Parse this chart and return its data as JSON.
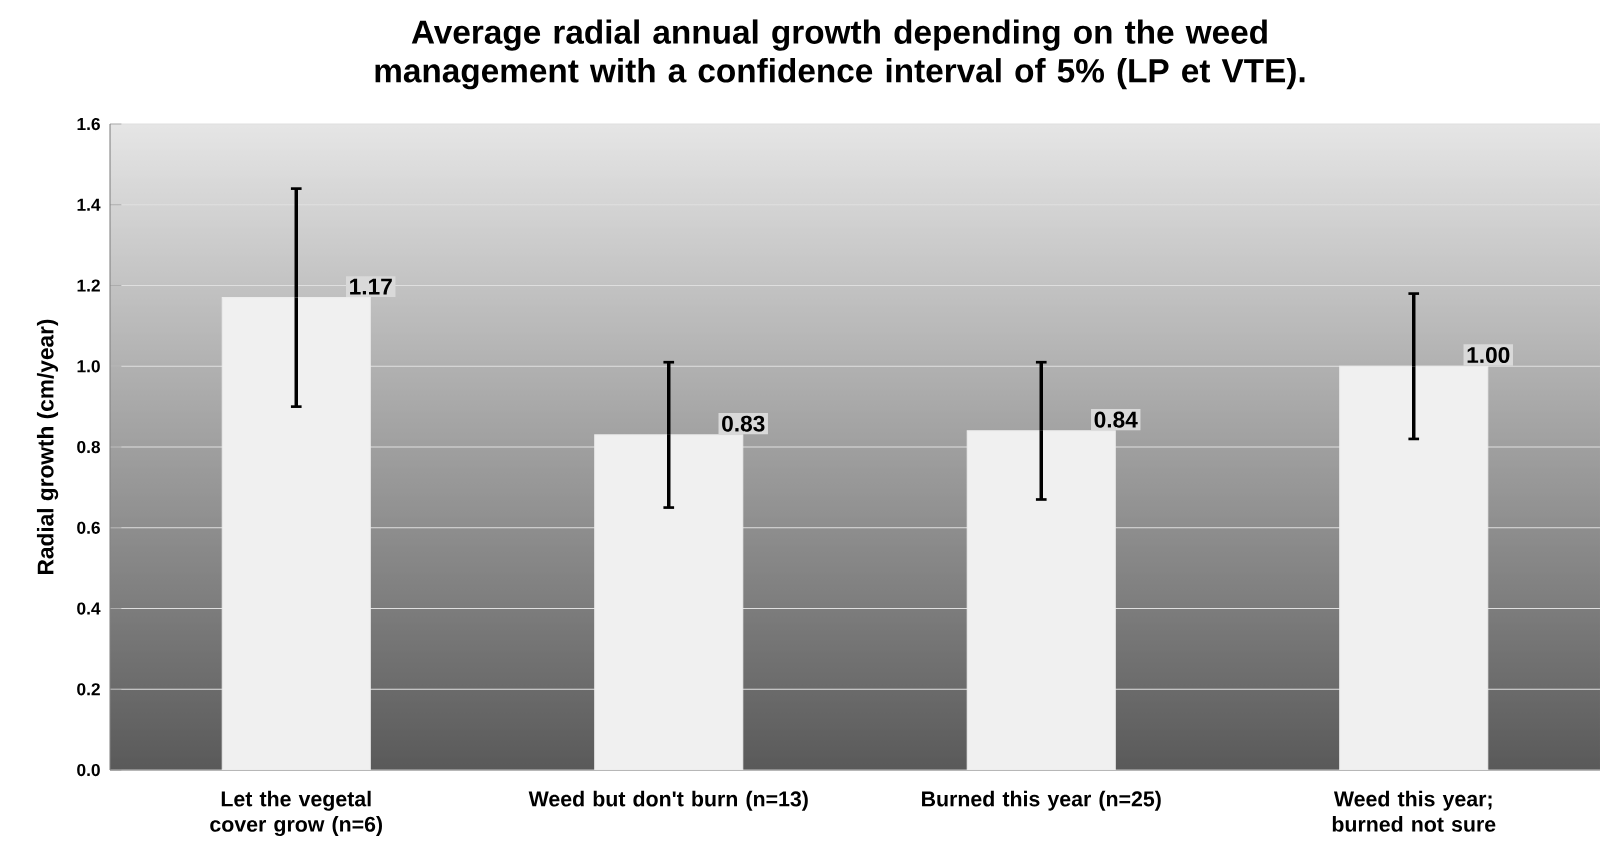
{
  "chart_data": {
    "type": "bar",
    "title": "Average radial annual growth depending on the weed management with a confidence interval of 5% (LP et VTE).",
    "ylabel": "Radial growth (cm/year)",
    "categories": [
      "Let the vegetal cover grow (n=6)",
      "Weed but don't burn (n=13)",
      "Burned this year (n=25)",
      "Weed this year; burned not sure"
    ],
    "values": [
      1.17,
      0.83,
      0.84,
      1.0
    ],
    "errors": [
      0.27,
      0.18,
      0.17,
      0.18
    ],
    "value_labels": [
      "1.17",
      "0.83",
      "0.84",
      "1.00"
    ],
    "color": "#f0f0f0",
    "ylim": [
      0,
      1.6
    ],
    "yticks": [
      {
        "value": 0,
        "label": "0.0"
      },
      0.2,
      0.4,
      0.6,
      0.8,
      {
        "value": 1,
        "label": "1.0"
      },
      1.2,
      1.4,
      1.6
    ],
    "grid": "y"
  }
}
